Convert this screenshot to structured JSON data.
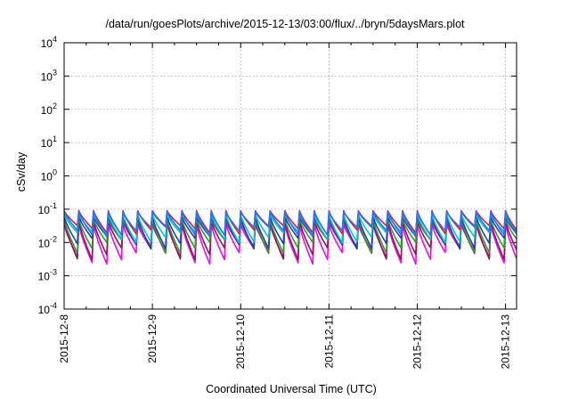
{
  "chart_data": {
    "type": "line",
    "title": "/data/run/goesPlots/archive/2015-12-13/03:00/flux/../bryn/5daysMars.plot",
    "xlabel": "Coordinated Universal Time (UTC)",
    "ylabel": "cSv/day",
    "yscale": "log",
    "ylim": [
      0.0001,
      10000
    ],
    "y_ticks": [
      {
        "label": "10",
        "exp": "-4"
      },
      {
        "label": "10",
        "exp": "-3"
      },
      {
        "label": "10",
        "exp": "-2"
      },
      {
        "label": "10",
        "exp": "-1"
      },
      {
        "label": "10",
        "exp": "0"
      },
      {
        "label": "10",
        "exp": "1"
      },
      {
        "label": "10",
        "exp": "2"
      },
      {
        "label": "10",
        "exp": "3"
      },
      {
        "label": "10",
        "exp": "4"
      }
    ],
    "xlim": [
      "2015-12-08",
      "2015-12-13 03:00"
    ],
    "x_ticks": [
      "2015-12-8",
      "2015-12-9",
      "2015-12-10",
      "2015-12-11",
      "2015-12-12",
      "2015-12-13"
    ],
    "grid": true,
    "approx_cycle_hours": 4,
    "series": [
      {
        "color": "#ff00ff",
        "peak": 0.035,
        "trough": 0.003
      },
      {
        "color": "#8b1a4a",
        "peak": 0.045,
        "trough": 0.004
      },
      {
        "color": "#2aa02a",
        "peak": 0.05,
        "trough": 0.006
      },
      {
        "color": "#1f3fbf",
        "peak": 0.06,
        "trough": 0.008
      },
      {
        "color": "#00c8c8",
        "peak": 0.07,
        "trough": 0.012
      },
      {
        "color": "#dd2222",
        "peak": 0.09,
        "trough": 0.02
      },
      {
        "color": "#2a6fff",
        "peak": 0.085,
        "trough": 0.018
      }
    ]
  }
}
